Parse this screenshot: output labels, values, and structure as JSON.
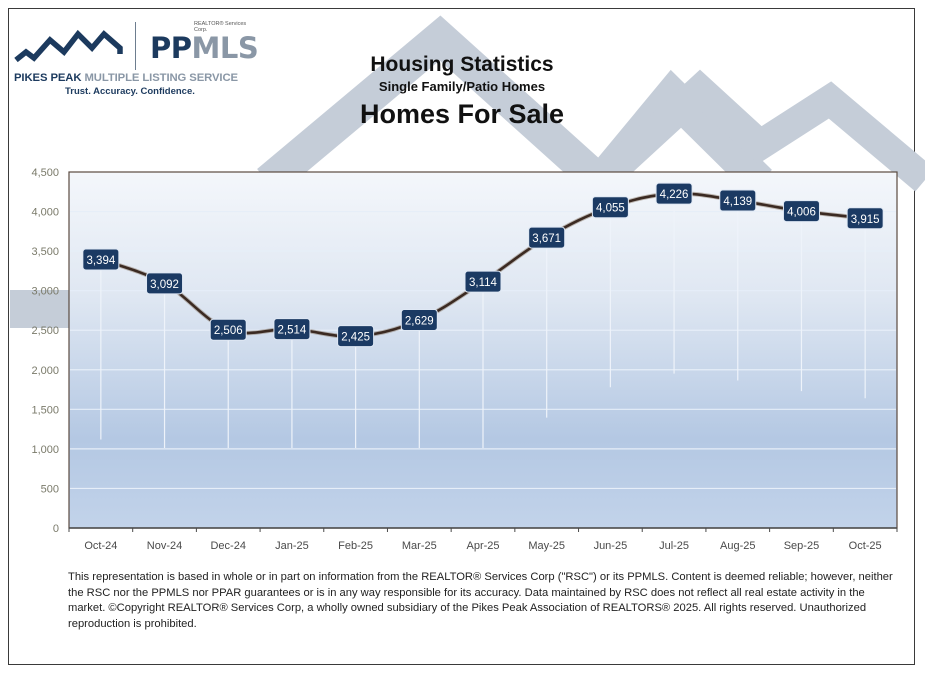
{
  "logo": {
    "rsc_label": "REALTOR® Services Corp.",
    "brand_pp": "PP",
    "brand_mls": "MLS",
    "org_name_bold": "PIKES PEAK",
    "org_name_light": "MULTIPLE LISTING SERVICE",
    "tagline": "Trust. Accuracy. Confidence."
  },
  "header": {
    "title": "Housing Statistics",
    "subtitle": "Single Family/Patio Homes",
    "chart_title": "Homes For Sale"
  },
  "colors": {
    "line": "#3b2a22",
    "label_box": "#1b3a63",
    "label_text": "#ffffff",
    "plot_top": "#f3f6fb",
    "plot_bottom": "#b1c6e2",
    "watermark": "#c5cdd8",
    "brand_navy": "#1c3a5e",
    "brand_gray": "#8a97a6"
  },
  "chart_data": {
    "type": "line",
    "title": "Homes For Sale",
    "subtitle": "Single Family/Patio Homes",
    "categories": [
      "Oct-24",
      "Nov-24",
      "Dec-24",
      "Jan-25",
      "Feb-25",
      "Mar-25",
      "Apr-25",
      "May-25",
      "Jun-25",
      "Jul-25",
      "Aug-25",
      "Sep-25",
      "Oct-25"
    ],
    "values": [
      3394,
      3092,
      2506,
      2514,
      2425,
      2629,
      3114,
      3671,
      4055,
      4226,
      4139,
      4006,
      3915
    ],
    "data_labels": [
      "3,394",
      "3,092",
      "2,506",
      "2,514",
      "2,425",
      "2,629",
      "3,114",
      "3,671",
      "4,055",
      "4,226",
      "4,139",
      "4,006",
      "3,915"
    ],
    "xlabel": "",
    "ylabel": "",
    "ylim": [
      0,
      4500
    ],
    "yticks": [
      0,
      500,
      1000,
      1500,
      2000,
      2500,
      3000,
      3500,
      4000,
      4500
    ],
    "ytick_labels": [
      "0",
      "500",
      "1,000",
      "1,500",
      "2,000",
      "2,500",
      "3,000",
      "3,500",
      "4,000",
      "4,500"
    ],
    "grid": true,
    "legend": "none",
    "smooth_line": true
  },
  "disclaimer": "This representation is based in whole or in part on information from the REALTOR® Services Corp (\"RSC\") or its PPMLS. Content is deemed reliable; however, neither the RSC nor the PPMLS nor PPAR guarantees or is in any way responsible for its accuracy. Data maintained by RSC does not reflect all real estate activity in the market. ©Copyright REALTOR® Services Corp, a wholly owned subsidiary of the Pikes Peak Association of REALTORS® 2025. All rights reserved. Unauthorized reproduction is prohibited."
}
